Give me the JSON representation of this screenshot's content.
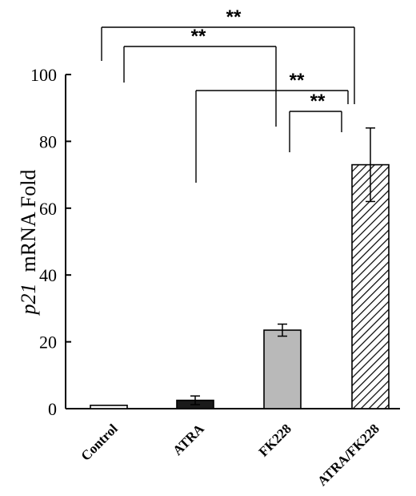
{
  "chart_data": {
    "type": "bar",
    "categories": [
      "Control",
      "ATRA",
      "FK228",
      "ATRA/FK228"
    ],
    "values": [
      1,
      2.5,
      23.5,
      73
    ],
    "errors": [
      0.2,
      1.3,
      1.8,
      11
    ],
    "bar_fills": [
      "white",
      "black",
      "gray",
      "hatched"
    ],
    "ylabel_italic": "p21",
    "ylabel_rest": "mRNA Fold",
    "ylim": [
      0,
      100
    ],
    "yticks": [
      0,
      20,
      40,
      60,
      80,
      100
    ],
    "grid": false,
    "significance": [
      {
        "from": 0,
        "to": 3,
        "label": "**"
      },
      {
        "from": 0,
        "to": 2,
        "label": "**"
      },
      {
        "from": 1,
        "to": 3,
        "label": "**"
      },
      {
        "from": 2,
        "to": 3,
        "label": "**"
      }
    ]
  }
}
